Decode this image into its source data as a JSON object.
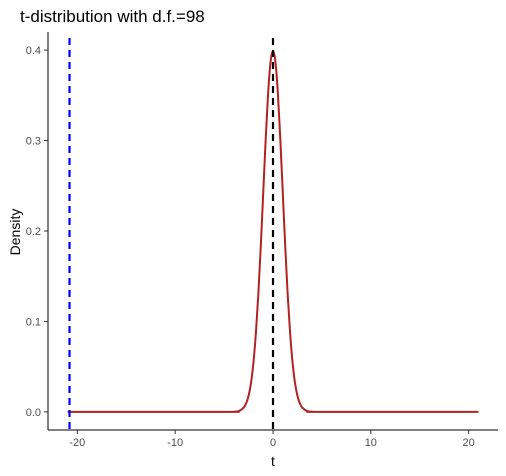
{
  "chart_data": {
    "type": "line",
    "title": "t-distribution with d.f.=98",
    "xlabel": "t",
    "ylabel": "Density",
    "xlim": [
      -23,
      23
    ],
    "ylim": [
      -0.02,
      0.42
    ],
    "x_ticks": [
      -20,
      -10,
      0,
      10,
      20
    ],
    "x_tick_labels": [
      "-20",
      "-10",
      "0",
      "10",
      "20"
    ],
    "y_ticks": [
      0.0,
      0.1,
      0.2,
      0.3,
      0.4
    ],
    "y_tick_labels": [
      "0.0",
      "0.1",
      "0.2",
      "0.3",
      "0.4"
    ],
    "grid": false,
    "series": [
      {
        "color": "#b22222",
        "x": [
          -21,
          -5,
          -4,
          -3.5,
          -3,
          -2.75,
          -2.5,
          -2.25,
          -2,
          -1.75,
          -1.5,
          -1.25,
          -1,
          -0.75,
          -0.5,
          -0.25,
          0,
          0.25,
          0.5,
          0.75,
          1,
          1.25,
          1.5,
          1.75,
          2,
          2.25,
          2.5,
          2.75,
          3,
          3.5,
          4,
          5,
          21
        ],
        "values": [
          0.0,
          0.0,
          0.0002,
          0.0009,
          0.0047,
          0.0093,
          0.0177,
          0.032,
          0.0546,
          0.087,
          0.13,
          0.1829,
          0.242,
          0.301,
          0.3521,
          0.3867,
          0.3989,
          0.3867,
          0.3521,
          0.301,
          0.242,
          0.1829,
          0.13,
          0.087,
          0.0546,
          0.032,
          0.0177,
          0.0093,
          0.0047,
          0.0009,
          0.0002,
          0.0,
          0.0
        ]
      }
    ],
    "reference_lines": [
      {
        "x": -20.8,
        "color": "#0000ff"
      },
      {
        "x": 0,
        "color": "#000000"
      }
    ]
  }
}
